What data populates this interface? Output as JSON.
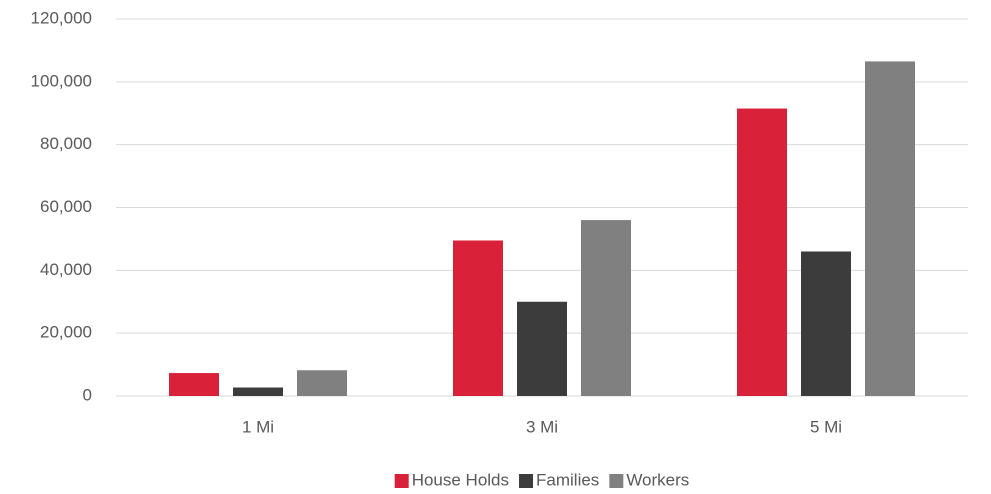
{
  "chart_data": {
    "type": "bar",
    "categories": [
      "1 Mi",
      "3 Mi",
      "5 Mi"
    ],
    "series": [
      {
        "name": "House Holds",
        "color": "#d9213a",
        "values": [
          7300,
          49500,
          91500
        ]
      },
      {
        "name": "Families",
        "color": "#3b3c3b",
        "values": [
          2700,
          30000,
          46000
        ]
      },
      {
        "name": "Workers",
        "color": "#808080",
        "values": [
          8200,
          56000,
          106500
        ]
      }
    ],
    "ylim": [
      0,
      120000
    ],
    "yticks": [
      0,
      {
        "value": 20000,
        "label": "20,000"
      },
      {
        "value": 40000,
        "label": "40,000"
      },
      {
        "value": 60000,
        "label": "60,000"
      },
      {
        "value": 80000,
        "label": "80,000"
      },
      {
        "value": 100000,
        "label": "100,000"
      },
      {
        "value": 120000,
        "label": "120,000"
      }
    ],
    "grid": true,
    "legend": "bottom"
  }
}
